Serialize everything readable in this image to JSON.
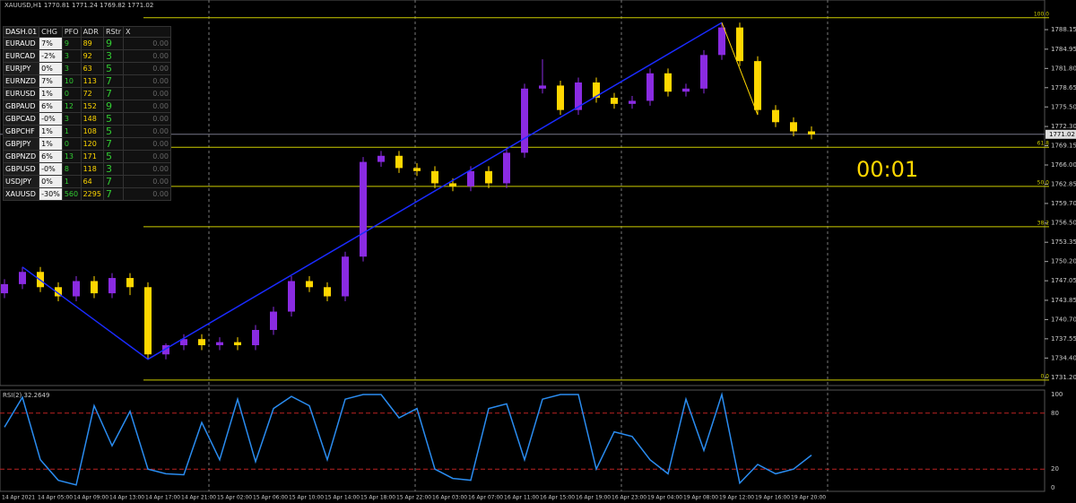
{
  "header": {
    "title": "XAUUSD,H1  1770.81 1771.24 1769.82 1771.02"
  },
  "chart_data": {
    "type": "candlestick",
    "up_color": "#8a2be2",
    "down_color": "#ffd700",
    "open": [
      1745,
      1746.5,
      1748.5,
      1746,
      1744.5,
      1747,
      1745,
      1747.5,
      1746,
      1735,
      1736.5,
      1737.5,
      1736.5,
      1737,
      1736.5,
      1739,
      1742,
      1747,
      1746,
      1744.5,
      1751,
      1766.5,
      1767.5,
      1765.5,
      1765,
      1763,
      1762.5,
      1765,
      1763,
      1768,
      1778.5,
      1779,
      1775,
      1779.5,
      1777,
      1776,
      1776.5,
      1781,
      1778,
      1778.5,
      1784,
      1788.5,
      1783,
      1775,
      1773,
      1771.5
    ],
    "high": [
      1747.3,
      1749.3,
      1749.3,
      1746.8,
      1747.8,
      1747.8,
      1748.3,
      1748.3,
      1746.8,
      1736.8,
      1738.3,
      1738.3,
      1737.8,
      1737.8,
      1739.8,
      1742.8,
      1747.8,
      1747.8,
      1746.8,
      1751.8,
      1767.3,
      1768.3,
      1768.3,
      1766.3,
      1765.8,
      1763.8,
      1765.8,
      1765.8,
      1768.8,
      1779.3,
      1783.3,
      1779.8,
      1780.3,
      1780.3,
      1777.8,
      1777.3,
      1781.8,
      1781.8,
      1779.3,
      1784.8,
      1789.3,
      1789.3,
      1783.8,
      1775.8,
      1773.8,
      1772.3
    ],
    "low": [
      1744.2,
      1745.7,
      1745.2,
      1743.7,
      1743.7,
      1744.2,
      1744.2,
      1744.7,
      1734.2,
      1734.2,
      1735.7,
      1735.7,
      1735.7,
      1735.7,
      1735.7,
      1738.2,
      1741.2,
      1745.2,
      1743.7,
      1743.7,
      1750.2,
      1765.7,
      1764.7,
      1764.2,
      1762.2,
      1761.7,
      1761.7,
      1762.2,
      1762.2,
      1767.2,
      1777.7,
      1774.2,
      1774.2,
      1776.2,
      1775.2,
      1775.2,
      1775.7,
      1777.2,
      1777.2,
      1777.7,
      1783.2,
      1782.2,
      1774.2,
      1772.2,
      1770.7,
      1770.2
    ],
    "close": [
      1746.5,
      1748.5,
      1746,
      1744.5,
      1747,
      1745,
      1747.5,
      1746,
      1735,
      1736.5,
      1737.5,
      1736.5,
      1737,
      1736.5,
      1739,
      1742,
      1747,
      1746,
      1744.5,
      1751,
      1766.5,
      1767.5,
      1765.5,
      1765,
      1763,
      1762.5,
      1765,
      1763,
      1768,
      1778.5,
      1779,
      1775,
      1779.5,
      1777,
      1776,
      1776.5,
      1781,
      1778,
      1778.5,
      1784,
      1788.5,
      1783,
      1775,
      1773,
      1771.5,
      1771
    ],
    "ylim": [
      1729.9,
      1793.0
    ],
    "yticks": [
      1788.15,
      1784.95,
      {
        "value": 1781.8,
        "label": "1781.80"
      },
      1778.65,
      {
        "value": 1775.5,
        "label": "1775.50"
      },
      {
        "value": 1772.3,
        "label": "1772.30"
      },
      1769.15,
      {
        "value": 1766,
        "label": "1766.00"
      },
      1762.85,
      {
        "value": 1759.7,
        "label": "1759.70"
      },
      {
        "value": 1756.5,
        "label": "1756.50"
      },
      1753.35,
      {
        "value": 1750.2,
        "label": "1750.20"
      },
      1747.05,
      1743.85,
      {
        "value": 1740.7,
        "label": "1740.70"
      },
      1737.55,
      {
        "value": 1734.4,
        "label": "1734.40"
      },
      {
        "value": 1731.2,
        "label": "1731.20"
      }
    ],
    "current_price": {
      "value": 1771.02,
      "label": "1771.02"
    },
    "fib_levels": [
      {
        "label": "100.0",
        "price": 1790.1
      },
      {
        "label": "61.8",
        "price": 1768.9
      },
      {
        "label": "50.0",
        "price": 1762.5
      },
      {
        "label": "38.2",
        "price": 1755.9
      },
      {
        "label": "0.0",
        "price": 1730.8
      }
    ],
    "x_labels": [
      "14 Apr 2021",
      "14 Apr 05:00",
      "14 Apr 09:00",
      "14 Apr 13:00",
      "14 Apr 17:00",
      "14 Apr 21:00",
      "15 Apr 02:00",
      "15 Apr 06:00",
      "15 Apr 10:00",
      "15 Apr 14:00",
      "15 Apr 18:00",
      "15 Apr 22:00",
      "16 Apr 03:00",
      "16 Apr 07:00",
      "16 Apr 11:00",
      "16 Apr 15:00",
      "16 Apr 19:00",
      "16 Apr 23:00",
      "19 Apr 04:00",
      "19 Apr 08:00",
      "19 Apr 12:00",
      "19 Apr 16:00",
      "19 Apr 20:00"
    ],
    "countdown": "00:01",
    "rsi": {
      "title": "RSI(2) 32.2649",
      "color": "#2a8cf0",
      "ylim": [
        0,
        100
      ],
      "yticks": [
        100,
        80,
        20,
        0
      ],
      "levels": [
        80,
        20
      ],
      "values": [
        65,
        97,
        30,
        8,
        3,
        88,
        45,
        82,
        20,
        15,
        14,
        70,
        30,
        95,
        28,
        85,
        98,
        88,
        30,
        95,
        100,
        100,
        75,
        85,
        20,
        10,
        8,
        85,
        90,
        30,
        95,
        100,
        100,
        20,
        60,
        55,
        30,
        15,
        95,
        40,
        100,
        5,
        25,
        15,
        20,
        35
      ]
    }
  },
  "dashboard": {
    "header": [
      "DASH.01",
      "CHG",
      "PFO",
      "ADR",
      "RStr",
      "X"
    ],
    "rows": [
      [
        "EURAUD",
        "7%",
        "9",
        "89",
        "9",
        "0.00"
      ],
      [
        "EURCAD",
        "-2%",
        "3",
        "92",
        "3",
        "0.00"
      ],
      [
        "EURJPY",
        "0%",
        "3",
        "63",
        "5",
        "0.00"
      ],
      [
        "EURNZD",
        "7%",
        "10",
        "113",
        "7",
        "0.00"
      ],
      [
        "EURUSD",
        "1%",
        "0",
        "72",
        "7",
        "0.00"
      ],
      [
        "GBPAUD",
        "6%",
        "12",
        "152",
        "9",
        "0.00"
      ],
      [
        "GBPCAD",
        "-0%",
        "3",
        "148",
        "5",
        "0.00"
      ],
      [
        "GBPCHF",
        "1%",
        "1",
        "108",
        "5",
        "0.00"
      ],
      [
        "GBPJPY",
        "1%",
        "0",
        "120",
        "7",
        "0.00"
      ],
      [
        "GBPNZD",
        "6%",
        "13",
        "171",
        "5",
        "0.00"
      ],
      [
        "GBPUSD",
        "-0%",
        "8",
        "118",
        "3",
        "0.00"
      ],
      [
        "USDJPY",
        "0%",
        "1",
        "64",
        "7",
        "0.00"
      ],
      [
        "XAUUSD",
        "-30%",
        "560",
        "2295",
        "7",
        "0.00"
      ]
    ]
  }
}
